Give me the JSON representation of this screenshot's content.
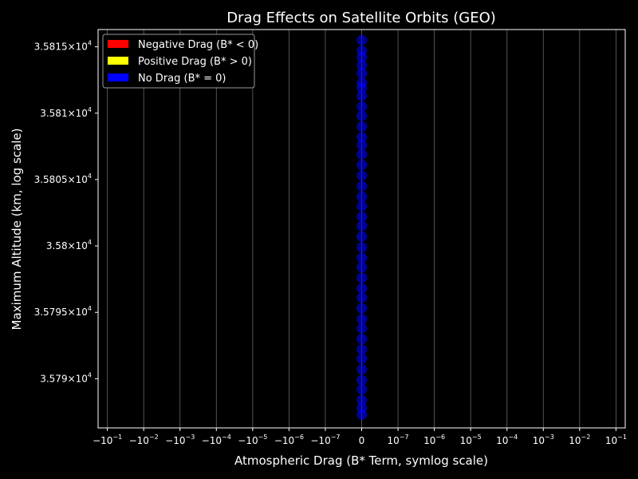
{
  "chart_data": {
    "type": "scatter",
    "title": "Drag Effects on Satellite Orbits (GEO)",
    "xlabel": "Atmospheric Drag (B* Term, symlog scale)",
    "ylabel": "Maximum Altitude (km, log scale)",
    "x_scale": "symlog",
    "x_linthresh": 1e-07,
    "y_scale": "log",
    "xlim": [
      -0.18,
      0.18
    ],
    "ylim": [
      35786.3,
      35816.3
    ],
    "grid": "vertical",
    "legend_position": "top-left",
    "x_ticks": [
      {
        "value": -0.1,
        "base": "−10",
        "exp": "−1"
      },
      {
        "value": -0.01,
        "base": "−10",
        "exp": "−2"
      },
      {
        "value": -0.001,
        "base": "−10",
        "exp": "−3"
      },
      {
        "value": -0.0001,
        "base": "−10",
        "exp": "−4"
      },
      {
        "value": -1e-05,
        "base": "−10",
        "exp": "−5"
      },
      {
        "value": -1e-06,
        "base": "−10",
        "exp": "−6"
      },
      {
        "value": -1e-07,
        "base": "−10",
        "exp": "−7"
      },
      {
        "value": 0,
        "base": "0",
        "exp": ""
      },
      {
        "value": 1e-07,
        "base": "10",
        "exp": "−7"
      },
      {
        "value": 1e-06,
        "base": "10",
        "exp": "−6"
      },
      {
        "value": 1e-05,
        "base": "10",
        "exp": "−5"
      },
      {
        "value": 0.0001,
        "base": "10",
        "exp": "−4"
      },
      {
        "value": 0.001,
        "base": "10",
        "exp": "−3"
      },
      {
        "value": 0.01,
        "base": "10",
        "exp": "−2"
      },
      {
        "value": 0.1,
        "base": "10",
        "exp": "−1"
      }
    ],
    "y_ticks": [
      {
        "value": 35790,
        "base": "3.579×10",
        "exp": "4"
      },
      {
        "value": 35795,
        "base": "3.5795×10",
        "exp": "4"
      },
      {
        "value": 35800,
        "base": "3.58×10",
        "exp": "4"
      },
      {
        "value": 35805,
        "base": "3.5805×10",
        "exp": "4"
      },
      {
        "value": 35810,
        "base": "3.581×10",
        "exp": "4"
      },
      {
        "value": 35815,
        "base": "3.5815×10",
        "exp": "4"
      }
    ],
    "legend": [
      {
        "label": "Negative Drag (B* < 0)",
        "color": "#ff0000"
      },
      {
        "label": "Positive Drag (B* > 0)",
        "color": "#ffff00"
      },
      {
        "label": "No Drag (B* = 0)",
        "color": "#0000ff"
      }
    ],
    "series": [
      {
        "name": "No Drag (B* = 0)",
        "color": "#0000ff",
        "points": [
          {
            "x": 0,
            "y": 35815.5
          },
          {
            "x": 0,
            "y": 35814.7
          },
          {
            "x": 0,
            "y": 35814.2
          },
          {
            "x": 0,
            "y": 35813.6
          },
          {
            "x": 0,
            "y": 35813.0
          },
          {
            "x": 0,
            "y": 35812.3
          },
          {
            "x": 0,
            "y": 35811.9
          },
          {
            "x": 0,
            "y": 35811.3
          },
          {
            "x": 0,
            "y": 35810.5
          },
          {
            "x": 0,
            "y": 35809.8
          },
          {
            "x": 0,
            "y": 35809.0
          },
          {
            "x": 0,
            "y": 35808.2
          },
          {
            "x": 0,
            "y": 35807.6
          },
          {
            "x": 0,
            "y": 35806.9
          },
          {
            "x": 0,
            "y": 35806.1
          },
          {
            "x": 0,
            "y": 35805.3
          },
          {
            "x": 0,
            "y": 35804.5
          },
          {
            "x": 0,
            "y": 35803.7
          },
          {
            "x": 0,
            "y": 35803.0
          },
          {
            "x": 0,
            "y": 35802.2
          },
          {
            "x": 0,
            "y": 35801.5
          },
          {
            "x": 0,
            "y": 35800.7
          },
          {
            "x": 0,
            "y": 35799.9
          },
          {
            "x": 0,
            "y": 35799.1
          },
          {
            "x": 0,
            "y": 35798.4
          },
          {
            "x": 0,
            "y": 35797.6
          },
          {
            "x": 0,
            "y": 35796.8
          },
          {
            "x": 0,
            "y": 35796.1
          },
          {
            "x": 0,
            "y": 35795.3
          },
          {
            "x": 0,
            "y": 35794.5
          },
          {
            "x": 0,
            "y": 35793.8
          },
          {
            "x": 0,
            "y": 35793.0
          },
          {
            "x": 0,
            "y": 35792.2
          },
          {
            "x": 0,
            "y": 35791.5
          },
          {
            "x": 0,
            "y": 35790.7
          },
          {
            "x": 0,
            "y": 35789.9
          },
          {
            "x": 0,
            "y": 35789.2
          },
          {
            "x": 0,
            "y": 35788.4
          },
          {
            "x": 0,
            "y": 35787.8
          },
          {
            "x": 0,
            "y": 35787.3
          }
        ]
      }
    ]
  }
}
